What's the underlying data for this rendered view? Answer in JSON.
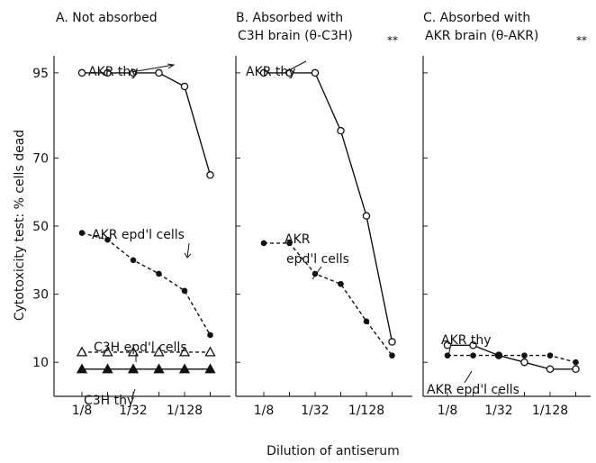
{
  "figure": {
    "xlabel": "Dilution of antiserum",
    "ylabel": "Cytotoxicity test: % cells dead"
  },
  "chart_data": [
    {
      "type": "line",
      "panel": "A",
      "title": "A. Not absorbed",
      "subtitle": "",
      "title_mark": "",
      "xlabel": "Dilution of antiserum",
      "ylabel": "Cytotoxicity test: % cells dead",
      "x_scale": "log2",
      "x": [
        8,
        16,
        32,
        64,
        128,
        256
      ],
      "x_tick_values": [
        8,
        32,
        128
      ],
      "x_tick_labels": [
        "1/8",
        "1/32",
        "1/128"
      ],
      "ylim": [
        0,
        100
      ],
      "y_ticks": [
        10,
        30,
        50,
        70,
        95
      ],
      "series": [
        {
          "name": "AKR thy",
          "style": "solid",
          "marker": "open-circle",
          "values": [
            95,
            95,
            95,
            95,
            91,
            65
          ]
        },
        {
          "name": "AKR epd'l cells",
          "style": "dashed",
          "marker": "filled-circle",
          "values": [
            48,
            46,
            40,
            36,
            31,
            18
          ]
        },
        {
          "name": "C3H epd'l cells",
          "style": "dashed",
          "marker": "open-triangle",
          "values": [
            13,
            13,
            13,
            13,
            13,
            13
          ]
        },
        {
          "name": "C3H thy",
          "style": "solid",
          "marker": "filled-triangle",
          "values": [
            8,
            8,
            8,
            8,
            8,
            8
          ]
        }
      ],
      "annotations": [
        {
          "text": "AKR thy",
          "series": 0
        },
        {
          "text": "AKR epd'l cells",
          "series": 1
        },
        {
          "text": "C3H epd'l cells",
          "series": 2
        },
        {
          "text": "C3H thy",
          "series": 3
        }
      ]
    },
    {
      "type": "line",
      "panel": "B",
      "title": "B. Absorbed with",
      "subtitle": "C3H brain (θ-C3H)",
      "title_mark": "⁎⁎",
      "x_scale": "log2",
      "x": [
        8,
        16,
        32,
        64,
        128,
        256
      ],
      "x_tick_values": [
        8,
        32,
        128
      ],
      "x_tick_labels": [
        "1/8",
        "1/32",
        "1/128"
      ],
      "ylim": [
        0,
        100
      ],
      "series": [
        {
          "name": "AKR thy",
          "style": "solid",
          "marker": "open-circle",
          "values": [
            95,
            95,
            95,
            78,
            53,
            16
          ]
        },
        {
          "name": "AKR epd'l cells",
          "style": "dashed",
          "marker": "filled-circle",
          "values": [
            45,
            45,
            36,
            33,
            22,
            12
          ]
        }
      ],
      "annotations": [
        {
          "text": "AKR thy",
          "series": 0
        },
        {
          "text": "AKR",
          "series": 1
        },
        {
          "text": "epd'l cells",
          "series": 1
        }
      ]
    },
    {
      "type": "line",
      "panel": "C",
      "title": "C. Absorbed with",
      "subtitle": "AKR brain (θ-AKR)",
      "title_mark": "⁎⁎",
      "x_scale": "log2",
      "x": [
        8,
        16,
        32,
        64,
        128,
        256
      ],
      "x_tick_values": [
        8,
        32,
        128
      ],
      "x_tick_labels": [
        "1/8",
        "1/32",
        "1/128"
      ],
      "ylim": [
        0,
        100
      ],
      "series": [
        {
          "name": "AKR thy",
          "style": "solid",
          "marker": "open-circle",
          "values": [
            15,
            15,
            12,
            10,
            8,
            8
          ]
        },
        {
          "name": "AKR epd'l cells",
          "style": "dashed",
          "marker": "filled-circle",
          "values": [
            12,
            12,
            12,
            12,
            12,
            10
          ]
        }
      ],
      "annotations": [
        {
          "text": "AKR thy",
          "series": 0
        },
        {
          "text": "AKR epd'l cells",
          "series": 1
        }
      ]
    }
  ]
}
